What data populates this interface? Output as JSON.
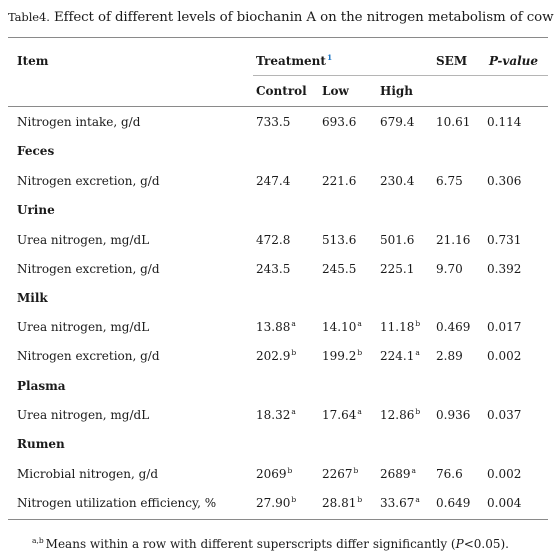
{
  "caption": {
    "label": "Table4.",
    "text": "Effect of different levels of biochanin A on the nitrogen metabolism of cows."
  },
  "header": {
    "item": "Item",
    "treatment": "Treatment",
    "treatment_sup": "1",
    "sem": "SEM",
    "pvalue": "P-value",
    "control": "Control",
    "low": "Low",
    "high": "High"
  },
  "rows": [
    {
      "label": "Nitrogen intake, g/d",
      "control": "733.5",
      "control_sup": "",
      "low": "693.6",
      "low_sup": "",
      "high": "679.4",
      "high_sup": "",
      "sem": "10.61",
      "p": "0.114"
    },
    {
      "section": "Feces"
    },
    {
      "label": "Nitrogen excretion, g/d",
      "control": "247.4",
      "control_sup": "",
      "low": "221.6",
      "low_sup": "",
      "high": "230.4",
      "high_sup": "",
      "sem": "6.75",
      "p": "0.306"
    },
    {
      "section": "Urine"
    },
    {
      "label": "Urea nitrogen, mg/dL",
      "control": "472.8",
      "control_sup": "",
      "low": "513.6",
      "low_sup": "",
      "high": "501.6",
      "high_sup": "",
      "sem": "21.16",
      "p": "0.731"
    },
    {
      "label": "Nitrogen excretion, g/d",
      "control": "243.5",
      "control_sup": "",
      "low": "245.5",
      "low_sup": "",
      "high": "225.1",
      "high_sup": "",
      "sem": "9.70",
      "p": "0.392"
    },
    {
      "section": "Milk"
    },
    {
      "label": "Urea nitrogen, mg/dL",
      "control": "13.88",
      "control_sup": "a",
      "low": "14.10",
      "low_sup": "a",
      "high": "11.18",
      "high_sup": "b",
      "sem": "0.469",
      "p": "0.017"
    },
    {
      "label": "Nitrogen excretion, g/d",
      "control": "202.9",
      "control_sup": "b",
      "low": "199.2",
      "low_sup": "b",
      "high": "224.1",
      "high_sup": "a",
      "sem": "2.89",
      "p": "0.002"
    },
    {
      "section": "Plasma"
    },
    {
      "label": "Urea nitrogen, mg/dL",
      "control": "18.32",
      "control_sup": "a",
      "low": "17.64",
      "low_sup": "a",
      "high": "12.86",
      "high_sup": "b",
      "sem": "0.936",
      "p": "0.037"
    },
    {
      "section": "Rumen"
    },
    {
      "label": "Microbial nitrogen, g/d",
      "control": "2069",
      "control_sup": "b",
      "low": "2267",
      "low_sup": "b",
      "high": "2689",
      "high_sup": "a",
      "sem": "76.6",
      "p": "0.002"
    },
    {
      "label": "Nitrogen utilization efficiency, %",
      "control": "27.90",
      "control_sup": "b",
      "low": "28.81",
      "low_sup": "b",
      "high": "33.67",
      "high_sup": "a",
      "sem": "0.649",
      "p": "0.004"
    }
  ],
  "footnote": {
    "sup": "a,b",
    "text_before": "Means within a row with different superscripts differ significantly (",
    "p_symbol": "P",
    "text_after": "<0.05)."
  }
}
